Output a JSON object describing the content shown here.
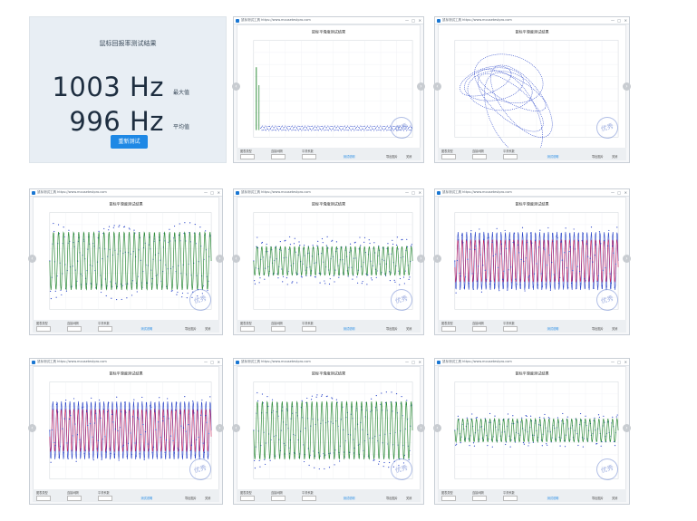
{
  "result": {
    "title": "鼠标回报率测试结果",
    "max_value": "1003 Hz",
    "max_label": "最大值",
    "avg_value": "996 Hz",
    "avg_label": "平均值",
    "retest_label": "重新测试"
  },
  "window_common": {
    "url": "鼠标测试工具 https://www.mousetestpro.com",
    "plot_title": "鼠标平滑度测试结果",
    "stamp": "优秀",
    "controls": [
      "图表类型",
      "连接间隔",
      "平滑系数"
    ],
    "link_label": "测试说明",
    "btn1": "导出图片",
    "btn2": "关闭"
  },
  "colors": {
    "accent": "#1e88e5",
    "green_series": "#2e8b3a",
    "blue_series": "#2a45c8",
    "red_series": "#d0245a"
  },
  "nav": {
    "prev": "‹",
    "next": "›"
  }
}
